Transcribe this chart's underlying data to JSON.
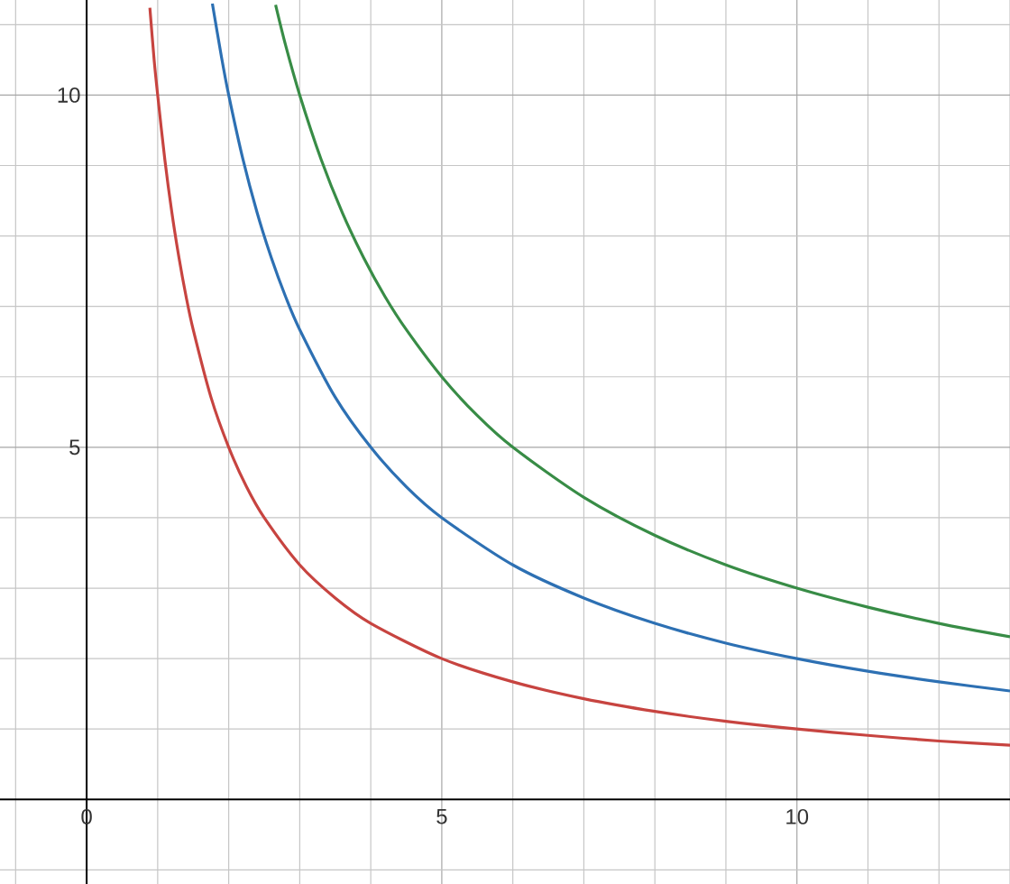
{
  "chart_data": {
    "type": "line",
    "xlim": [
      -1.22,
      13.0
    ],
    "ylim": [
      -1.2,
      11.35
    ],
    "xticks": [
      {
        "value": -1,
        "label": null
      },
      0,
      {
        "value": 1,
        "label": null
      },
      {
        "value": 2,
        "label": null
      },
      {
        "value": 3,
        "label": null
      },
      {
        "value": 4,
        "label": null
      },
      5,
      {
        "value": 6,
        "label": null
      },
      {
        "value": 7,
        "label": null
      },
      {
        "value": 8,
        "label": null
      },
      {
        "value": 9,
        "label": null
      },
      10,
      {
        "value": 11,
        "label": null
      },
      {
        "value": 12,
        "label": null
      },
      {
        "value": 13,
        "label": null
      }
    ],
    "yticks": [
      {
        "value": -1,
        "label": null
      },
      {
        "value": 1,
        "label": null
      },
      {
        "value": 2,
        "label": null
      },
      {
        "value": 3,
        "label": null
      },
      {
        "value": 4,
        "label": null
      },
      5,
      {
        "value": 6,
        "label": null
      },
      {
        "value": 7,
        "label": null
      },
      {
        "value": 8,
        "label": null
      },
      {
        "value": 9,
        "label": null
      },
      10,
      {
        "value": 11,
        "label": null
      }
    ],
    "grid": true,
    "marker": "none",
    "line_style": "solid",
    "series": [
      {
        "color": "#c74440",
        "x": [
          0.89,
          0.95,
          1,
          1.1,
          1.2,
          1.3,
          1.4,
          1.5,
          1.75,
          2,
          2.25,
          2.5,
          3,
          3.5,
          4,
          5,
          6,
          7,
          8,
          9,
          10,
          11,
          12,
          13
        ],
        "values": [
          11.24,
          10.5,
          10,
          9.09,
          8.33,
          7.69,
          7.14,
          6.67,
          5.71,
          5,
          4.44,
          4,
          3.33,
          2.86,
          2.5,
          2,
          1.67,
          1.43,
          1.25,
          1.11,
          1,
          0.91,
          0.83,
          0.77
        ]
      },
      {
        "color": "#2d70b3",
        "x": [
          1.77,
          1.9,
          2,
          2.2,
          2.4,
          2.6,
          2.8,
          3,
          3.5,
          4,
          4.5,
          5,
          6,
          7,
          8,
          9,
          10,
          11,
          12,
          13
        ],
        "values": [
          11.3,
          10.53,
          10,
          9.09,
          8.33,
          7.69,
          7.14,
          6.67,
          5.71,
          5,
          4.44,
          4,
          3.33,
          2.86,
          2.5,
          2.22,
          2,
          1.82,
          1.67,
          1.54
        ]
      },
      {
        "color": "#388c46",
        "x": [
          2.66,
          2.8,
          3,
          3.3,
          3.6,
          3.9,
          4.2,
          4.5,
          5,
          5.5,
          6,
          7,
          8,
          9,
          10,
          11,
          12,
          13
        ],
        "values": [
          11.28,
          10.71,
          10,
          9.09,
          8.33,
          7.69,
          7.14,
          6.67,
          6,
          5.45,
          5,
          4.29,
          3.75,
          3.33,
          3,
          2.73,
          2.5,
          2.31
        ]
      }
    ]
  }
}
